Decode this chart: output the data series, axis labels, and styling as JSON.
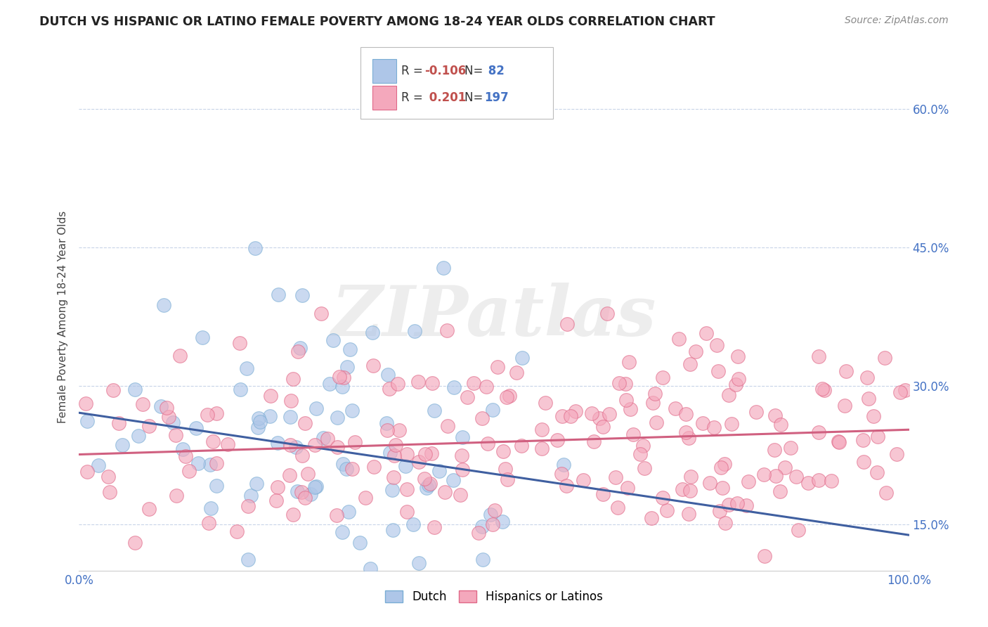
{
  "title": "DUTCH VS HISPANIC OR LATINO FEMALE POVERTY AMONG 18-24 YEAR OLDS CORRELATION CHART",
  "source": "Source: ZipAtlas.com",
  "ylabel": "Female Poverty Among 18-24 Year Olds",
  "xlim": [
    0,
    100
  ],
  "ylim": [
    10,
    65
  ],
  "yticks": [
    15,
    30,
    45,
    60
  ],
  "dutch_color": "#aec6e8",
  "dutch_edge_color": "#7aadd4",
  "hispanic_color": "#f4a8bc",
  "hispanic_edge_color": "#e06888",
  "dutch_line_color": "#3f5fa0",
  "hispanic_line_color": "#d06080",
  "dutch_R": -0.106,
  "dutch_N": 82,
  "hispanic_R": 0.201,
  "hispanic_N": 197,
  "legend_label_dutch": "Dutch",
  "legend_label_hispanic": "Hispanics or Latinos",
  "r_color": "#c0504d",
  "n_color": "#4472c4",
  "grid_color": "#c8d4e8",
  "tick_color": "#4472c4"
}
